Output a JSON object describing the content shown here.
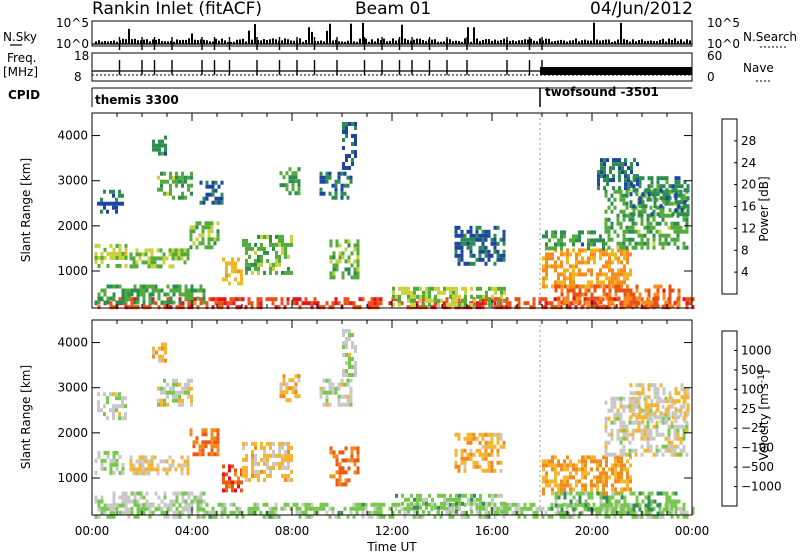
{
  "header": {
    "station": "Rankin Inlet (fitACF)",
    "beam": "Beam 01",
    "date": "04/Jun/2012"
  },
  "summary_panel": {
    "left_label_nsky": "N.Sky",
    "left_label_freq_1": "Freq.",
    "left_label_freq_2": "[MHz]",
    "left_label_cpid": "CPID",
    "right_label_nsearch": "N.Search",
    "right_label_nave": "Nave",
    "nsky_ticks": [
      "10^5",
      "10^0"
    ],
    "nsearch_ticks": [
      "10^5",
      "10^0"
    ],
    "freq_ticks": [
      "18",
      "8"
    ],
    "nave_ticks": [
      "60",
      "0"
    ],
    "cpid_left": "themis 3300",
    "cpid_right": "twofsound -3501"
  },
  "colors": {
    "power_scale": [
      "#0a14f0",
      "#1e46a0",
      "#2d8c50",
      "#55aa3c",
      "#c8d23c",
      "#f0b41e",
      "#f58c1e",
      "#eb5014",
      "#e6141e"
    ],
    "velocity_scale": [
      "#1e3cb4",
      "#2d6496",
      "#3c8c5a",
      "#78c850",
      "#c8c8c8",
      "#f5b432",
      "#f08c1e",
      "#eb5a14",
      "#e6141e"
    ]
  },
  "chart_data": [
    {
      "type": "heatmap",
      "title": "Power",
      "ylabel": "Slant Range [km]",
      "xlabel": "Time UT",
      "x_ticks": [
        "00:00",
        "04:00",
        "08:00",
        "12:00",
        "16:00",
        "20:00",
        "00:00"
      ],
      "y_ticks": [
        "1000",
        "2000",
        "3000",
        "4000"
      ],
      "xlim_hours": [
        0,
        24
      ],
      "ylim_km": [
        180,
        4500
      ],
      "colorbar_label": "Power [dB]",
      "colorbar_ticks": [
        "28",
        "24",
        "20",
        "16",
        "12",
        "8",
        "4"
      ],
      "colorbar_range": [
        0,
        30
      ],
      "regions": [
        {
          "t0": 0.1,
          "t1": 24.0,
          "r0": 180,
          "r1": 420,
          "v": 26
        },
        {
          "t0": 0.1,
          "t1": 4.5,
          "r0": 300,
          "r1": 700,
          "v": 10
        },
        {
          "t0": 0.1,
          "t1": 1.4,
          "r0": 1100,
          "r1": 1600,
          "v": 14
        },
        {
          "t0": 0.2,
          "t1": 1.2,
          "r0": 2300,
          "r1": 2800,
          "v": 6
        },
        {
          "t0": 1.5,
          "t1": 3.8,
          "r0": 1100,
          "r1": 1500,
          "v": 13
        },
        {
          "t0": 2.6,
          "t1": 4.0,
          "r0": 2600,
          "r1": 3200,
          "v": 11
        },
        {
          "t0": 2.4,
          "t1": 3.0,
          "r0": 3600,
          "r1": 4000,
          "v": 8
        },
        {
          "t0": 3.9,
          "t1": 5.0,
          "r0": 1500,
          "r1": 2100,
          "v": 12
        },
        {
          "t0": 4.3,
          "t1": 5.2,
          "r0": 2500,
          "r1": 3000,
          "v": 6
        },
        {
          "t0": 5.2,
          "t1": 6.0,
          "r0": 700,
          "r1": 1300,
          "v": 18
        },
        {
          "t0": 6.0,
          "t1": 8.0,
          "r0": 1000,
          "r1": 1800,
          "v": 12
        },
        {
          "t0": 7.5,
          "t1": 8.3,
          "r0": 2700,
          "r1": 3300,
          "v": 10
        },
        {
          "t0": 9.1,
          "t1": 10.4,
          "r0": 2600,
          "r1": 3200,
          "v": 7
        },
        {
          "t0": 9.5,
          "t1": 10.6,
          "r0": 900,
          "r1": 1700,
          "v": 12
        },
        {
          "t0": 10.0,
          "t1": 10.5,
          "r0": 3300,
          "r1": 4300,
          "v": 6
        },
        {
          "t0": 12.0,
          "t1": 16.5,
          "r0": 250,
          "r1": 650,
          "v": 14
        },
        {
          "t0": 14.5,
          "t1": 16.5,
          "r0": 1200,
          "r1": 2000,
          "v": 6
        },
        {
          "t0": 18.0,
          "t1": 21.5,
          "r0": 700,
          "r1": 1500,
          "v": 20
        },
        {
          "t0": 18.0,
          "t1": 20.5,
          "r0": 1500,
          "r1": 1900,
          "v": 9
        },
        {
          "t0": 20.5,
          "t1": 23.8,
          "r0": 1500,
          "r1": 2800,
          "v": 11
        },
        {
          "t0": 21.5,
          "t1": 23.9,
          "r0": 2300,
          "r1": 3100,
          "v": 8
        },
        {
          "t0": 18.5,
          "t1": 23.5,
          "r0": 180,
          "r1": 700,
          "v": 24
        },
        {
          "t0": 20.2,
          "t1": 21.8,
          "r0": 2800,
          "r1": 3500,
          "v": 7
        }
      ]
    },
    {
      "type": "heatmap",
      "title": "Velocity",
      "ylabel": "Slant Range [km]",
      "xlabel": "Time UT",
      "x_ticks": [
        "00:00",
        "04:00",
        "08:00",
        "12:00",
        "16:00",
        "20:00",
        "00:00"
      ],
      "y_ticks": [
        "1000",
        "2000",
        "3000",
        "4000"
      ],
      "xlim_hours": [
        0,
        24
      ],
      "ylim_km": [
        180,
        4500
      ],
      "colorbar_label": "Velocity [m s",
      "colorbar_label_sup": "-1",
      "colorbar_ticks": [
        "1000",
        "500",
        "100",
        "25",
        "−25",
        "−100",
        "−500",
        "−1000"
      ],
      "colorbar_range": [
        -1200,
        1200
      ],
      "regions": [
        {
          "t0": 0.1,
          "t1": 24.0,
          "r0": 180,
          "r1": 450,
          "v": -200
        },
        {
          "t0": 0.1,
          "t1": 4.5,
          "r0": 300,
          "r1": 700,
          "v": -90
        },
        {
          "t0": 0.1,
          "t1": 1.4,
          "r0": 1100,
          "r1": 1600,
          "v": -150
        },
        {
          "t0": 0.2,
          "t1": 1.4,
          "r0": 2300,
          "r1": 2900,
          "v": 0
        },
        {
          "t0": 1.5,
          "t1": 3.8,
          "r0": 1100,
          "r1": 1500,
          "v": 150
        },
        {
          "t0": 2.6,
          "t1": 4.0,
          "r0": 2600,
          "r1": 3200,
          "v": 0
        },
        {
          "t0": 2.4,
          "t1": 3.0,
          "r0": 3600,
          "r1": 4000,
          "v": 300
        },
        {
          "t0": 3.9,
          "t1": 5.0,
          "r0": 1500,
          "r1": 2100,
          "v": 700
        },
        {
          "t0": 5.2,
          "t1": 6.0,
          "r0": 700,
          "r1": 1300,
          "v": 800
        },
        {
          "t0": 6.0,
          "t1": 8.0,
          "r0": 1000,
          "r1": 1800,
          "v": 200
        },
        {
          "t0": 7.5,
          "t1": 8.3,
          "r0": 2700,
          "r1": 3300,
          "v": 300
        },
        {
          "t0": 9.1,
          "t1": 10.4,
          "r0": 2600,
          "r1": 3200,
          "v": 0
        },
        {
          "t0": 9.5,
          "t1": 10.6,
          "r0": 900,
          "r1": 1700,
          "v": 700
        },
        {
          "t0": 10.0,
          "t1": 10.5,
          "r0": 3300,
          "r1": 4300,
          "v": -60
        },
        {
          "t0": 12.0,
          "t1": 16.5,
          "r0": 250,
          "r1": 650,
          "v": -250
        },
        {
          "t0": 14.5,
          "t1": 16.5,
          "r0": 1200,
          "r1": 2000,
          "v": 300
        },
        {
          "t0": 18.0,
          "t1": 21.5,
          "r0": 700,
          "r1": 1500,
          "v": 400
        },
        {
          "t0": 20.5,
          "t1": 23.8,
          "r0": 1500,
          "r1": 2800,
          "v": 0
        },
        {
          "t0": 21.5,
          "t1": 23.9,
          "r0": 2300,
          "r1": 3100,
          "v": 120
        },
        {
          "t0": 18.5,
          "t1": 23.5,
          "r0": 180,
          "r1": 700,
          "v": -300
        }
      ]
    }
  ]
}
